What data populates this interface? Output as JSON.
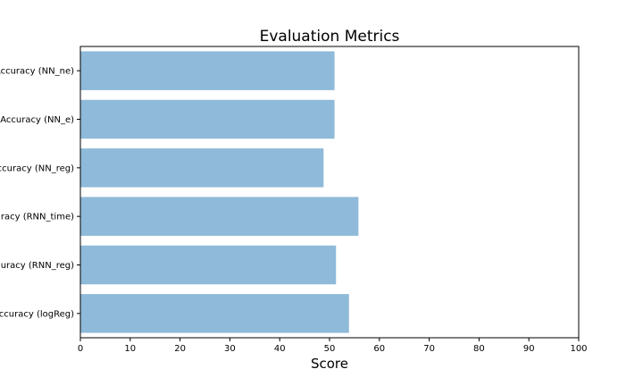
{
  "chart_data": {
    "type": "bar",
    "orientation": "horizontal",
    "title": "Evaluation Metrics",
    "xlabel": "Score",
    "ylabel": "",
    "xlim": [
      0,
      100
    ],
    "x_ticks": [
      0,
      10,
      20,
      30,
      40,
      50,
      60,
      70,
      80,
      90,
      100
    ],
    "categories": [
      "Accuracy (NN_ne)",
      "Accuracy (NN_e)",
      "Accuracy (NN_reg)",
      "Accuracy (RNN_time)",
      "Accuracy (RNN_reg)",
      "Accuracy (logReg)"
    ],
    "category_labels_visible": [
      "Accuracy (NN_ne)",
      "Accuracy (NN_e)",
      "ccuracy (NN_reg)",
      "racy (RNN_time)",
      "uracy (RNN_reg)",
      "ccuracy (logReg)"
    ],
    "values": [
      51.0,
      51.0,
      48.8,
      55.8,
      51.3,
      53.9
    ],
    "bar_color": "#8fbad9",
    "grid": false,
    "legend": "none"
  }
}
